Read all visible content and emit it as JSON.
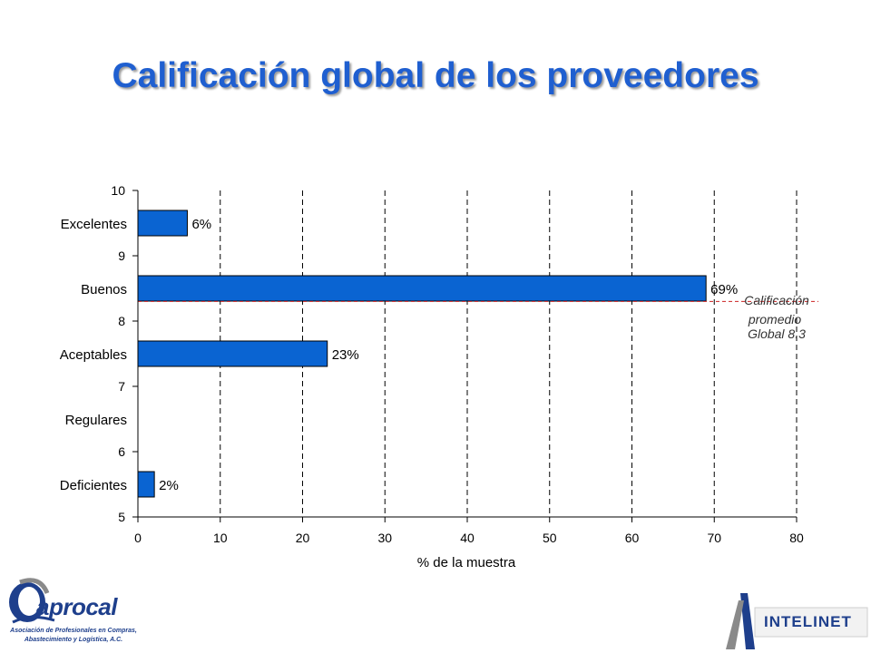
{
  "slide_title": "Calificación global de los proveedores",
  "chart_data": {
    "type": "bar",
    "orientation": "horizontal",
    "categories": [
      "Excelentes",
      "Buenos",
      "Aceptables",
      "Regulares",
      "Deficientes"
    ],
    "category_positions": [
      9.5,
      8.5,
      7.5,
      6.5,
      5.5
    ],
    "values": [
      6,
      69,
      23,
      null,
      2
    ],
    "value_labels": [
      "6%",
      "69%",
      "23%",
      "",
      "2%"
    ],
    "xlabel": "% de la muestra",
    "xlim": [
      0,
      80
    ],
    "x_ticks": [
      0,
      10,
      20,
      30,
      40,
      50,
      60,
      70,
      80
    ],
    "ylim": [
      5,
      10
    ],
    "y_ticks": [
      5,
      6,
      7,
      8,
      9,
      10
    ],
    "grid": "vertical dashed",
    "bar_color": "#0a64d2",
    "reference_line": {
      "value": 8.3,
      "label_lines": [
        "Calificación",
        "promedio",
        "Global  8.3"
      ],
      "color": "#cc2222"
    }
  },
  "logos": {
    "left": {
      "name": "aprocal",
      "subtitle_lines": [
        "Asociación de Profesionales en Compras,",
        "Abastecimiento y Logística, A.C."
      ]
    },
    "right": {
      "name": "INTELINET"
    }
  }
}
